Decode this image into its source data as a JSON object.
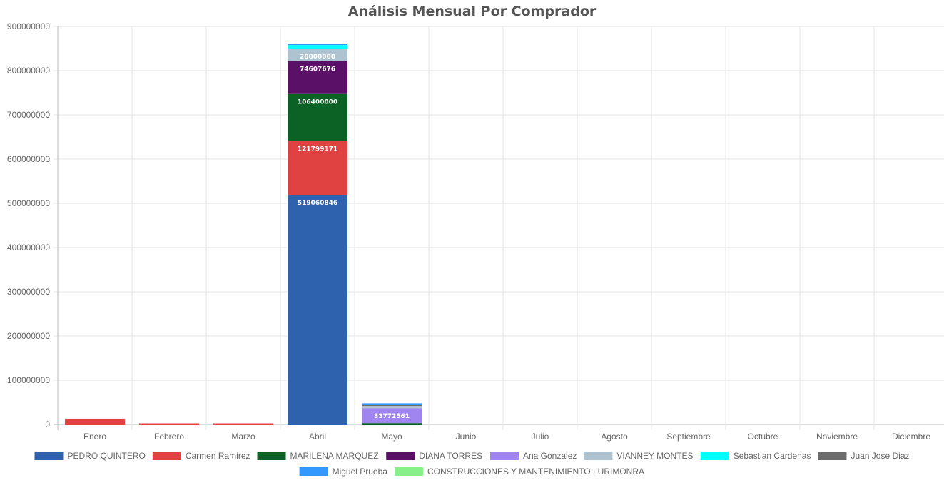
{
  "chart_data": {
    "type": "bar",
    "stacked": true,
    "title": "Análisis Mensual Por Comprador",
    "xlabel": "",
    "ylabel": "",
    "ylim": [
      0,
      900000000
    ],
    "y_ticks": [
      "0",
      "100000000",
      "200000000",
      "300000000",
      "400000000",
      "500000000",
      "600000000",
      "700000000",
      "800000000",
      "900000000"
    ],
    "grid": true,
    "legend_position": "bottom",
    "categories": [
      "Enero",
      "Febrero",
      "Marzo",
      "Abril",
      "Mayo",
      "Junio",
      "Julio",
      "Agosto",
      "Septiembre",
      "Octubre",
      "Noviembre",
      "Diciembre"
    ],
    "series": [
      {
        "name": "PEDRO QUINTERO",
        "color": "#2f62ae",
        "values": [
          0,
          0,
          0,
          519060846,
          0,
          0,
          0,
          0,
          0,
          0,
          0,
          0
        ]
      },
      {
        "name": "Carmen Ramirez",
        "color": "#e04141",
        "values": [
          13000000,
          1500000,
          1500000,
          121799171,
          0,
          0,
          0,
          0,
          0,
          0,
          0,
          0
        ]
      },
      {
        "name": "MARILENA MARQUEZ",
        "color": "#0c6124",
        "values": [
          0,
          0,
          0,
          106400000,
          3000000,
          0,
          0,
          0,
          0,
          0,
          0,
          0
        ]
      },
      {
        "name": "DIANA TORRES",
        "color": "#591066",
        "values": [
          0,
          0,
          0,
          74607676,
          0,
          0,
          0,
          0,
          0,
          0,
          0,
          0
        ]
      },
      {
        "name": "Ana Gonzalez",
        "color": "#a084f0",
        "values": [
          0,
          0,
          0,
          0,
          33772561,
          0,
          0,
          0,
          0,
          0,
          0,
          0
        ]
      },
      {
        "name": "VIANNEY MONTES",
        "color": "#aec3cf",
        "values": [
          0,
          0,
          0,
          28000000,
          5000000,
          0,
          0,
          0,
          0,
          0,
          0,
          0
        ]
      },
      {
        "name": "Sebastian Cardenas",
        "color": "#00ffff",
        "values": [
          0,
          0,
          0,
          8000000,
          0,
          0,
          0,
          0,
          0,
          0,
          0,
          0
        ]
      },
      {
        "name": "Juan Jose Diaz",
        "color": "#6c6c6c",
        "values": [
          0,
          0,
          0,
          0,
          2000000,
          0,
          0,
          0,
          0,
          0,
          0,
          0
        ]
      },
      {
        "name": "Miguel Prueba",
        "color": "#3399ff",
        "values": [
          0,
          0,
          0,
          2000000,
          4000000,
          0,
          0,
          0,
          0,
          0,
          0,
          0
        ]
      },
      {
        "name": "CONSTRUCCIONES Y MANTENIMIENTO LURIMONRA",
        "color": "#88f088",
        "values": [
          0,
          0,
          0,
          0,
          0,
          0,
          0,
          0,
          0,
          0,
          0,
          0
        ]
      }
    ],
    "data_labels": [
      {
        "category": "Abril",
        "series": "PEDRO QUINTERO",
        "text": "519060846"
      },
      {
        "category": "Abril",
        "series": "Carmen Ramirez",
        "text": "121799171"
      },
      {
        "category": "Abril",
        "series": "MARILENA MARQUEZ",
        "text": "106400000"
      },
      {
        "category": "Abril",
        "series": "DIANA TORRES",
        "text": "74607676"
      },
      {
        "category": "Abril",
        "series": "VIANNEY MONTES",
        "text": "28000000"
      },
      {
        "category": "Mayo",
        "series": "Ana Gonzalez",
        "text": "33772561"
      }
    ]
  }
}
